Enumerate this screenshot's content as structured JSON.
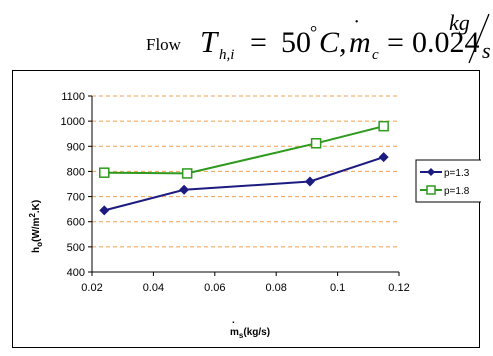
{
  "header": {
    "flow_word": "Flow",
    "expression": {
      "T": "T",
      "T_sub": "h,i",
      "eq1": "=",
      "temp_value": "50",
      "deg": "°",
      "temp_unit": "C,",
      "m": "m",
      "m_dot": "˙",
      "m_sub": "c",
      "eq2": "=",
      "flow_value": "0.024",
      "unit_num": "kg",
      "unit_den": "s"
    }
  },
  "chart_data": {
    "type": "line",
    "title": "",
    "xlabel": {
      "main": "m",
      "sub": "s",
      "rest": "(kg/s)",
      "dot": "."
    },
    "ylabel": {
      "main": "h",
      "sub": "o",
      "mid": "(W/m",
      "sup": "2",
      "rest": ".K)"
    },
    "xlim": [
      0.02,
      0.12
    ],
    "ylim": [
      400,
      1100
    ],
    "xticks": [
      "0.02",
      "0.04",
      "0.06",
      "0.08",
      "0.1",
      "0.12"
    ],
    "yticks": [
      "400",
      "500",
      "600",
      "700",
      "800",
      "900",
      "1000",
      "1100"
    ],
    "grid": "horizontal dashed",
    "legend_position": "right",
    "series": [
      {
        "name": "p=1.3",
        "marker": "diamond",
        "color": "#1c1c80",
        "points": [
          [
            0.024,
            645
          ],
          [
            0.05,
            727
          ],
          [
            0.091,
            760
          ],
          [
            0.115,
            857
          ]
        ]
      },
      {
        "name": "p=1.8",
        "marker": "square",
        "color": "#2e9a1e",
        "points": [
          [
            0.024,
            795
          ],
          [
            0.051,
            792
          ],
          [
            0.093,
            912
          ],
          [
            0.115,
            980
          ]
        ]
      }
    ],
    "grid_color": "#f0a050"
  }
}
